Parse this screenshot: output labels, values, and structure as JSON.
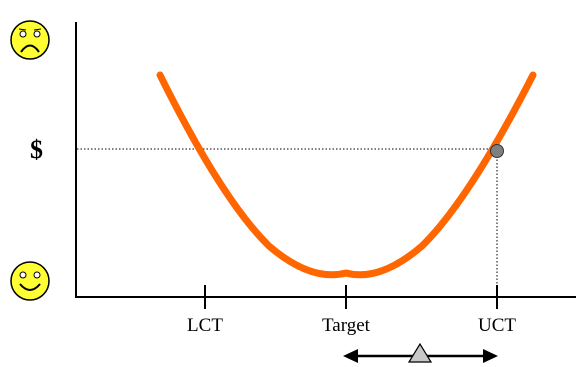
{
  "diagram": {
    "y_axis_symbol": "$",
    "x_ticks": [
      {
        "label": "LCT"
      },
      {
        "label": "Target"
      },
      {
        "label": "UCT"
      }
    ],
    "top_face_icon": "frowning-face-icon",
    "bottom_face_icon": "smiling-face-icon",
    "curve_color": "#ff6600",
    "face_color": "#ffff33",
    "marker_color": "#808080",
    "shift_arrow_icon": "double-headed-arrow-icon",
    "shift_marker_icon": "triangle-marker-icon"
  }
}
